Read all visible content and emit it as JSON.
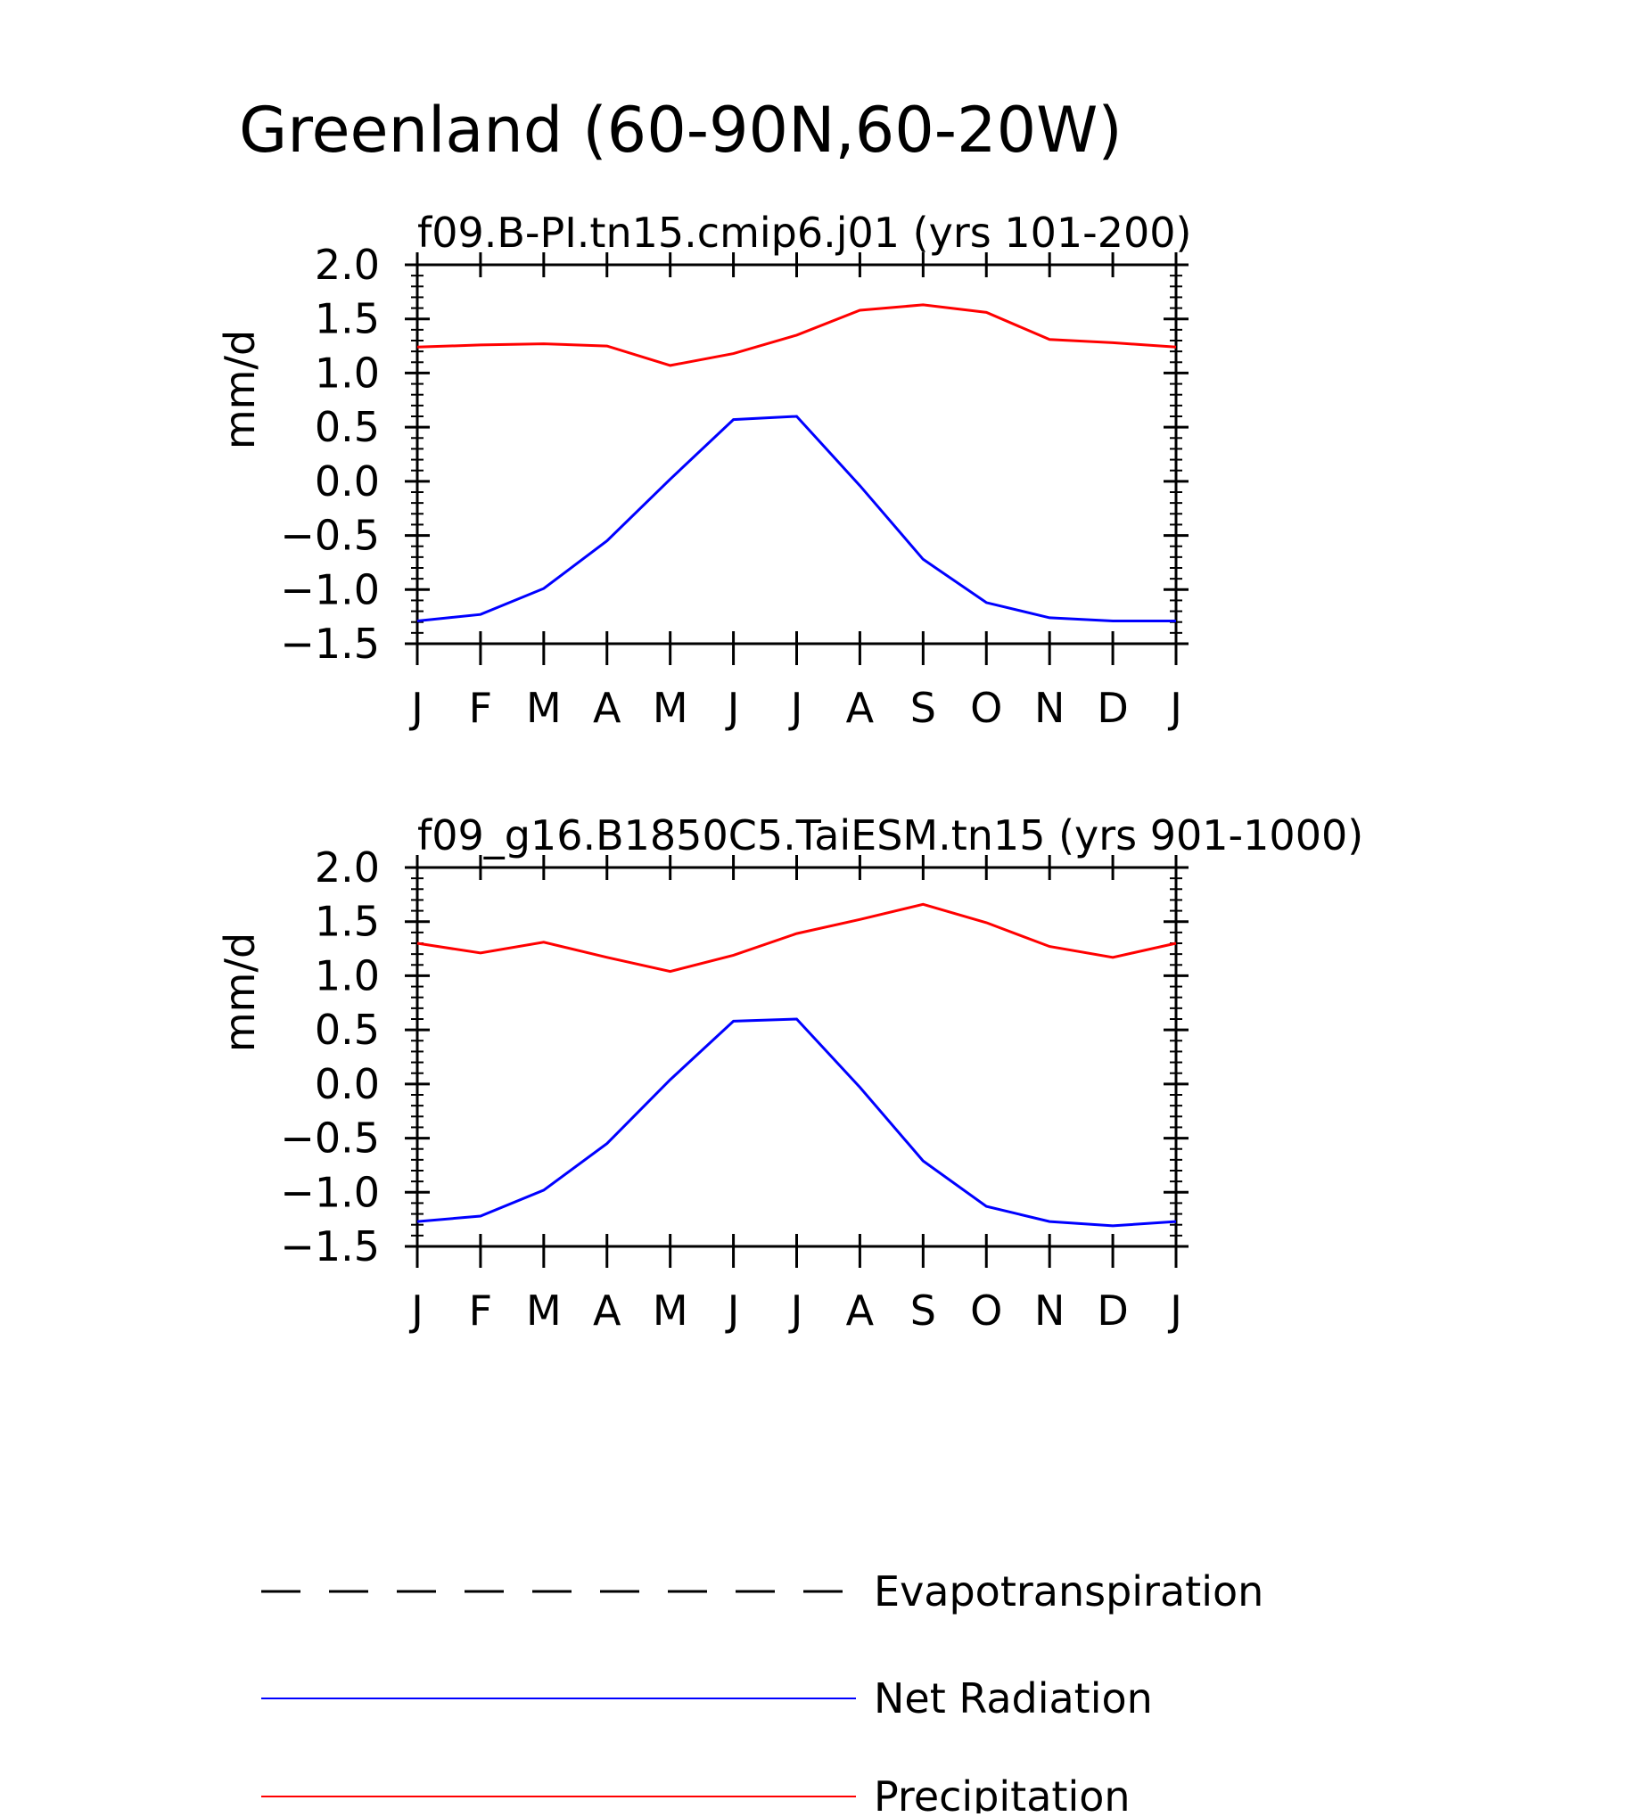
{
  "figure": {
    "title": "Greenland (60-90N,60-20W)"
  },
  "colors": {
    "axis": "#000000",
    "net_radiation": "#0000ff",
    "precipitation": "#ff0000",
    "evapotranspiration": "#000000"
  },
  "legend": {
    "placement": "bottom",
    "items": [
      {
        "label": "Evapotranspiration",
        "style": "dashed",
        "color": "#000000"
      },
      {
        "label": "Net Radiation",
        "style": "solid",
        "color": "#0000ff"
      },
      {
        "label": "Precipitation",
        "style": "solid",
        "color": "#ff0000"
      }
    ]
  },
  "chart_data": [
    {
      "type": "line",
      "title": "f09.B-PI.tn15.cmip6.j01 (yrs 101-200)",
      "xlabel": "",
      "ylabel": "mm/d",
      "categories": [
        "J",
        "F",
        "M",
        "A",
        "M",
        "J",
        "J",
        "A",
        "S",
        "O",
        "N",
        "D",
        "J"
      ],
      "ylim": [
        -1.5,
        2.0
      ],
      "yticks": [
        "2.0",
        "1.5",
        "1.0",
        "0.5",
        "0.0",
        "-0.5",
        "-1.0",
        "-1.5"
      ],
      "grid": false,
      "series": [
        {
          "name": "Precipitation",
          "color": "#ff0000",
          "values": [
            1.24,
            1.26,
            1.27,
            1.25,
            1.07,
            1.18,
            1.35,
            1.58,
            1.63,
            1.56,
            1.31,
            1.28,
            1.24
          ]
        },
        {
          "name": "Net Radiation",
          "color": "#0000ff",
          "values": [
            -1.29,
            -1.23,
            -0.99,
            -0.55,
            0.02,
            0.57,
            0.6,
            -0.04,
            -0.72,
            -1.12,
            -1.26,
            -1.29,
            -1.29
          ]
        }
      ]
    },
    {
      "type": "line",
      "title": "f09_g16.B1850C5.TaiESM.tn15 (yrs 901-1000)",
      "xlabel": "",
      "ylabel": "mm/d",
      "categories": [
        "J",
        "F",
        "M",
        "A",
        "M",
        "J",
        "J",
        "A",
        "S",
        "O",
        "N",
        "D",
        "J"
      ],
      "ylim": [
        -1.5,
        2.0
      ],
      "yticks": [
        "2.0",
        "1.5",
        "1.0",
        "0.5",
        "0.0",
        "-0.5",
        "-1.0",
        "-1.5"
      ],
      "grid": false,
      "series": [
        {
          "name": "Precipitation",
          "color": "#ff0000",
          "values": [
            1.3,
            1.21,
            1.31,
            1.17,
            1.04,
            1.19,
            1.39,
            1.52,
            1.66,
            1.49,
            1.27,
            1.17,
            1.3
          ]
        },
        {
          "name": "Net Radiation",
          "color": "#0000ff",
          "values": [
            -1.27,
            -1.22,
            -0.98,
            -0.55,
            0.04,
            0.58,
            0.6,
            -0.03,
            -0.71,
            -1.13,
            -1.27,
            -1.31,
            -1.27
          ]
        }
      ]
    }
  ]
}
